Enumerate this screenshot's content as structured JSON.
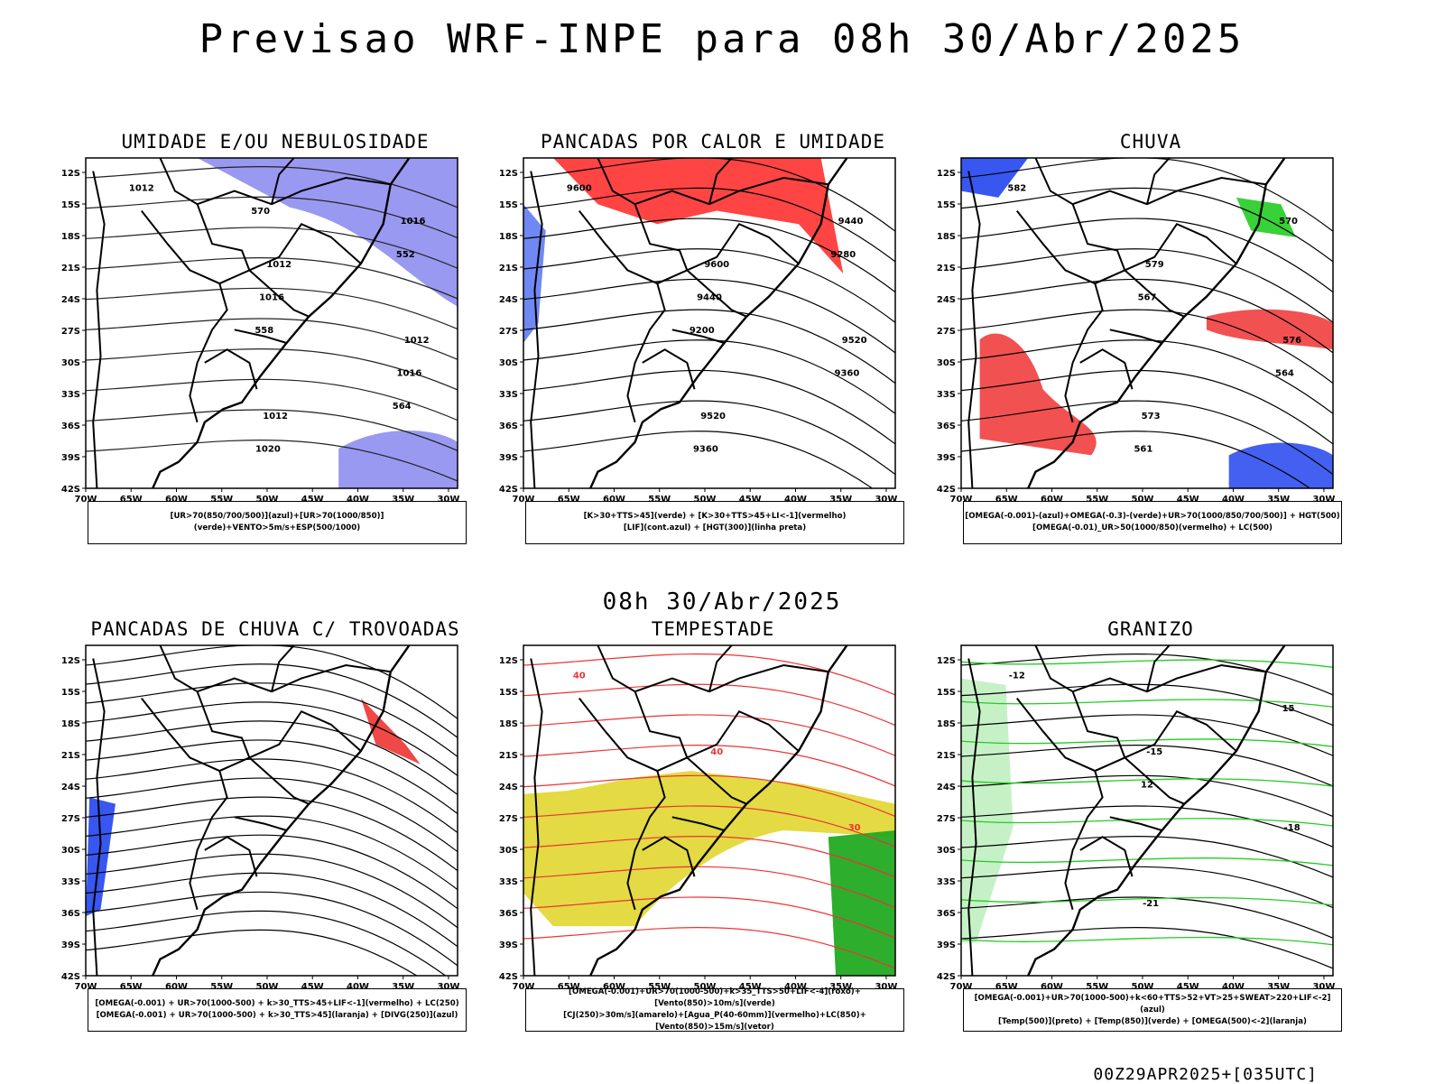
{
  "title": "Previsao WRF-INPE  para 08h 30/Abr/2025",
  "subtitle": "08h 30/Abr/2025",
  "footer": "00Z29APR2025+[035UTC]",
  "lat_ticks": [
    "12S",
    "15S",
    "18S",
    "21S",
    "24S",
    "27S",
    "30S",
    "33S",
    "36S",
    "39S",
    "42S"
  ],
  "lon_ticks": [
    "70W",
    "65W",
    "60W",
    "55W",
    "50W",
    "45W",
    "40W",
    "35W",
    "30W"
  ],
  "panels": [
    {
      "title": "UMIDADE E/OU NEBULOSIDADE",
      "caption": [
        "[UR>70(850/700/500)](azul)+[UR>70(1000/850)](verde)+VENTO>5m/s+ESP(500/1000)"
      ],
      "labels": [
        "1012",
        "1012",
        "1012",
        "1012",
        "1016",
        "1016",
        "1016",
        "1020",
        "552",
        "558",
        "564",
        "570"
      ]
    },
    {
      "title": "PANCADAS POR CALOR E UMIDADE",
      "caption": [
        "[K>30+TTS>45](verde) + [K>30+TTS>45+LI<-1](vermelho)",
        "[LIF](cont.azul) + [HGT(300)](linha preta)"
      ],
      "labels": [
        "9600",
        "9600",
        "9520",
        "9520",
        "9440",
        "9440",
        "9360",
        "9360",
        "9280",
        "9200"
      ]
    },
    {
      "title": "CHUVA",
      "caption": [
        "[OMEGA(-0.001)-(azul)+OMEGA(-0.3)-(verde)+UR>70(1000/850/700/500)] + HGT(500)",
        "[OMEGA(-0.01)_UR>50(1000/850)(vermelho) + LC(500)"
      ],
      "labels": [
        "582",
        "579",
        "576",
        "573",
        "570",
        "567",
        "564",
        "561"
      ]
    },
    {
      "title": "PANCADAS DE CHUVA C/ TROVOADAS",
      "caption": [
        "[OMEGA(-0.001) + UR>70(1000-500) + k>30_TTS>45+LIF<-1](vermelho) + LC(250)",
        "[OMEGA(-0.001) + UR>70(1000-500) + k>30_TTS>45](laranja) + [DIVG(250)](azul)"
      ],
      "labels": []
    },
    {
      "title": "TEMPESTADE",
      "caption": [
        "[OMEGA(-0.001)+UR>70(1000-500)+k>35_TTS>50+LIF<-4](roxo)+[Vento(850)>10m/s](verde)",
        "[CJ(250)>30m/s](amarelo)+[Agua_P(40-60mm)](vermelho)+LC(850)+[Vento(850)>15m/s](vetor)"
      ],
      "labels": [
        "40",
        "40",
        "30"
      ]
    },
    {
      "title": "GRANIZO",
      "caption": [
        "[OMEGA(-0.001)+UR>70(1000-500)+k<60+TTS>52+VT>25+SWEAT>220+LIF<-2](azul)",
        "[Temp(500)](preto) + [Temp(850)](verde) + [OMEGA(500)<-2](laranja)"
      ],
      "labels": [
        "-12",
        "-15",
        "-18",
        "-21",
        "15",
        "12"
      ]
    }
  ]
}
